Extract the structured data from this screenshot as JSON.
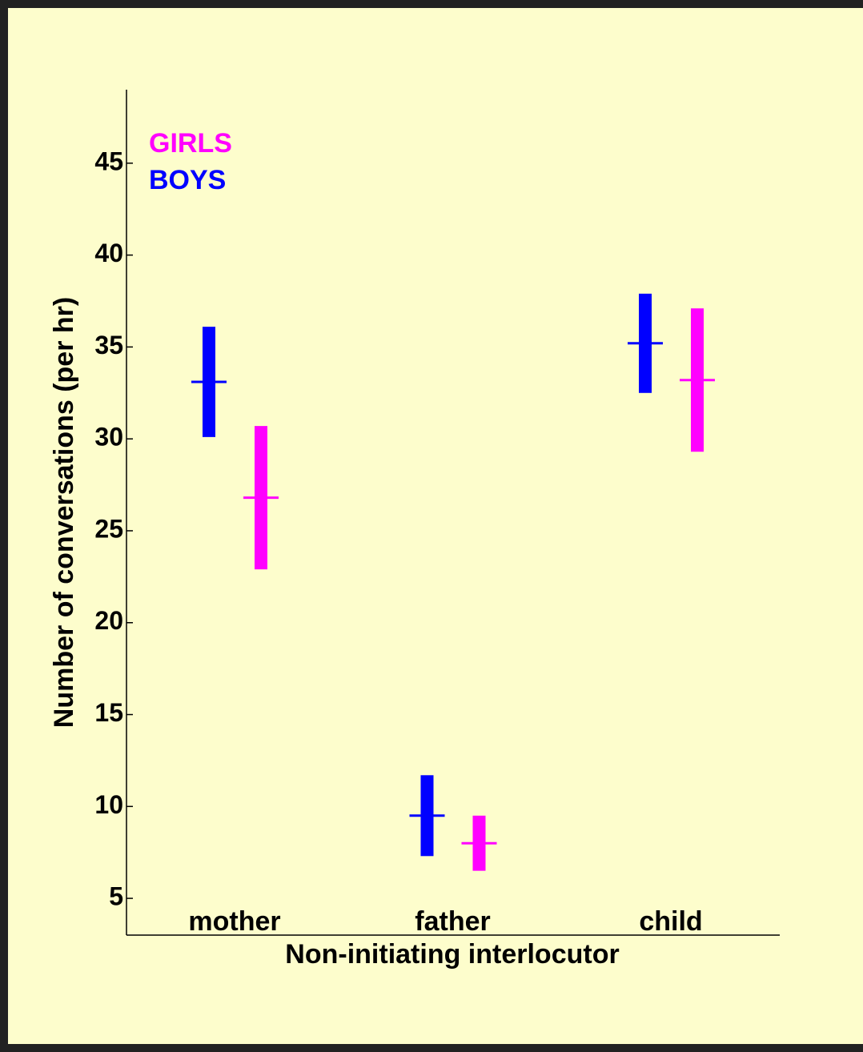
{
  "chart_data": {
    "type": "errorbar",
    "xlabel": "Non-initiating interlocutor",
    "ylabel": "Number of conversations (per hr)",
    "categories": [
      "mother",
      "father",
      "child"
    ],
    "series": [
      {
        "name": "BOYS",
        "color": "#0000ff",
        "values": [
          33.1,
          9.5,
          35.2
        ],
        "errors": [
          3.0,
          2.2,
          2.7
        ]
      },
      {
        "name": "GIRLS",
        "color": "#ff00ff",
        "values": [
          26.8,
          8.0,
          33.2
        ],
        "errors": [
          3.9,
          1.5,
          3.9
        ]
      }
    ],
    "ylim": [
      3,
      49
    ],
    "yticks": [
      5,
      10,
      15,
      20,
      25,
      30,
      35,
      40,
      45
    ],
    "legend": "upper left"
  }
}
